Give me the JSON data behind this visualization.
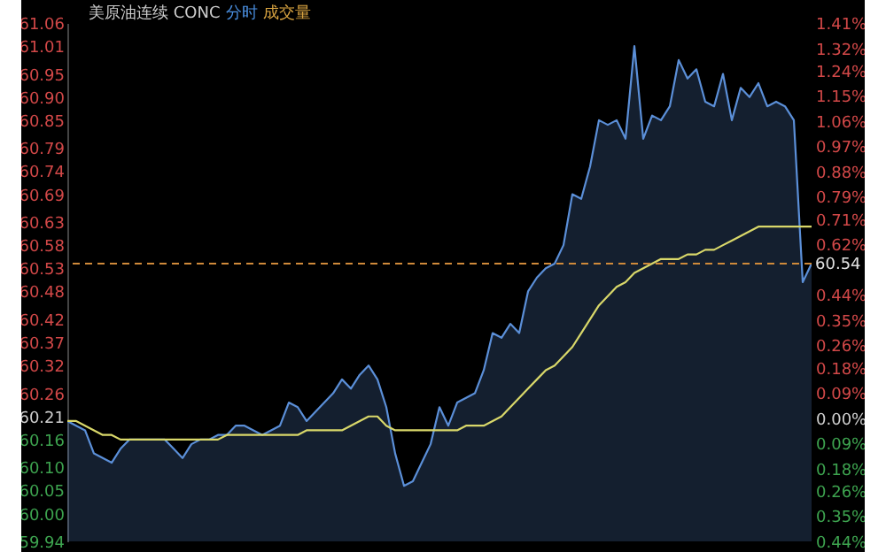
{
  "chart_data": {
    "type": "line",
    "title": "美原油连续 CONC",
    "annotations": [
      "分时",
      "成交量"
    ],
    "categories": [
      null,
      null,
      null,
      null,
      null,
      null,
      null,
      null,
      null,
      null,
      null,
      null,
      null,
      null,
      null,
      null,
      null,
      null,
      null,
      null,
      null,
      null,
      null,
      null,
      null,
      null,
      null,
      null,
      null,
      null,
      null,
      null,
      null,
      null,
      null,
      null,
      null,
      null,
      null,
      null,
      null,
      null,
      null,
      null,
      null,
      null,
      null,
      null,
      null,
      null,
      null,
      null,
      null,
      null,
      null,
      null,
      null,
      null,
      null,
      null,
      null,
      null,
      null,
      null,
      null,
      null,
      null,
      null,
      null,
      null,
      null,
      null,
      null,
      null,
      null,
      null,
      null,
      null,
      null,
      null,
      null,
      null,
      null,
      null,
      null
    ],
    "series": [
      {
        "type": "area",
        "color": "#5b8fd8",
        "values": [
          60.2,
          60.19,
          60.18,
          60.13,
          60.12,
          60.11,
          60.14,
          60.16,
          60.16,
          60.16,
          60.16,
          60.16,
          60.14,
          60.12,
          60.15,
          60.16,
          60.16,
          60.17,
          60.17,
          60.19,
          60.19,
          60.18,
          60.17,
          60.18,
          60.19,
          60.24,
          60.23,
          60.2,
          60.22,
          60.24,
          60.26,
          60.29,
          60.27,
          60.3,
          60.32,
          60.29,
          60.23,
          60.13,
          60.06,
          60.07,
          60.11,
          60.15,
          60.23,
          60.19,
          60.24,
          60.25,
          60.26,
          60.31,
          60.39,
          60.38,
          60.41,
          60.39,
          60.48,
          60.51,
          60.53,
          60.54,
          60.58,
          60.69,
          60.68,
          60.75,
          60.85,
          60.84,
          60.85,
          60.81,
          61.01,
          60.81,
          60.86,
          60.85,
          60.88,
          60.98,
          60.94,
          60.96,
          60.89,
          60.88,
          60.95,
          60.85,
          60.92,
          60.9,
          60.93,
          60.88,
          60.89,
          60.88,
          60.85,
          60.5,
          60.54
        ]
      },
      {
        "color": "#d9d86a",
        "values": [
          60.2,
          60.2,
          60.19,
          60.18,
          60.17,
          60.17,
          60.16,
          60.16,
          60.16,
          60.16,
          60.16,
          60.16,
          60.16,
          60.16,
          60.16,
          60.16,
          60.16,
          60.16,
          60.17,
          60.17,
          60.17,
          60.17,
          60.17,
          60.17,
          60.17,
          60.17,
          60.17,
          60.18,
          60.18,
          60.18,
          60.18,
          60.18,
          60.19,
          60.2,
          60.21,
          60.21,
          60.19,
          60.18,
          60.18,
          60.18,
          60.18,
          60.18,
          60.18,
          60.18,
          60.18,
          60.19,
          60.19,
          60.19,
          60.2,
          60.21,
          60.23,
          60.25,
          60.27,
          60.29,
          60.31,
          60.32,
          60.34,
          60.36,
          60.39,
          60.42,
          60.45,
          60.47,
          60.49,
          60.5,
          60.52,
          60.53,
          60.54,
          60.55,
          60.55,
          60.55,
          60.56,
          60.56,
          60.57,
          60.57,
          60.58,
          60.59,
          60.6,
          60.61,
          60.62,
          60.62,
          60.62,
          60.62,
          60.62,
          60.62,
          60.62
        ]
      }
    ],
    "ylim": [
      59.94,
      61.06
    ],
    "yticks": [
      61.06,
      61.01,
      60.95,
      {
        "value": 60.9,
        "label": "60.90"
      },
      60.85,
      60.79,
      60.74,
      60.69,
      60.63,
      60.58,
      60.53,
      60.48,
      60.42,
      60.37,
      60.32,
      60.26,
      60.21,
      60.16,
      {
        "value": 60.1,
        "label": "60.10"
      },
      60.05,
      {
        "value": 60,
        "label": "60.00"
      },
      59.94
    ],
    "y2lim": [
      -0.44,
      1.41
    ],
    "y2ticks": [
      {
        "value": 1.41,
        "label": "1.41%"
      },
      {
        "value": 1.32,
        "label": "1.32%"
      },
      {
        "value": 1.24,
        "label": "1.24%"
      },
      {
        "value": 1.15,
        "label": "1.15%"
      },
      {
        "value": 1.06,
        "label": "1.06%"
      },
      {
        "value": 0.97,
        "label": "0.97%"
      },
      {
        "value": 0.88,
        "label": "0.88%"
      },
      {
        "value": 0.79,
        "label": "0.79%"
      },
      {
        "value": 0.71,
        "label": "0.71%"
      },
      {
        "value": 0.62,
        "label": "0.62%"
      },
      {
        "value": 0.44,
        "label": "0.44%"
      },
      {
        "value": 0.35,
        "label": "0.35%"
      },
      {
        "value": 0.26,
        "label": "0.26%"
      },
      {
        "value": 0.18,
        "label": "0.18%"
      },
      {
        "value": 0.09,
        "label": "0.09%"
      },
      {
        "value": 0,
        "label": "0.00%"
      },
      {
        "value": -0.09,
        "label": "0.09%"
      },
      {
        "value": -0.18,
        "label": "0.18%"
      },
      {
        "value": -0.26,
        "label": "0.26%"
      },
      {
        "value": -0.35,
        "label": "0.35%"
      },
      {
        "value": -0.44,
        "label": "0.44%"
      }
    ],
    "ref_lines": [
      {
        "axis": "y",
        "value": 60.54,
        "label": "60.54",
        "color": "#d08a3a",
        "line_style": "dashed"
      }
    ],
    "tick_labels": "y"
  }
}
